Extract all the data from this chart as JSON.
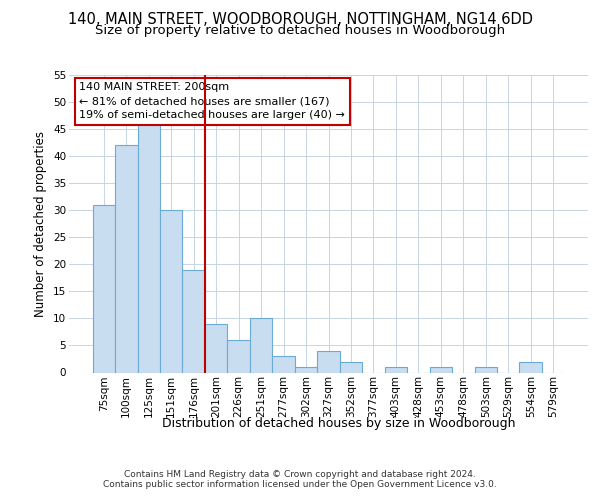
{
  "title1": "140, MAIN STREET, WOODBOROUGH, NOTTINGHAM, NG14 6DD",
  "title2": "Size of property relative to detached houses in Woodborough",
  "xlabel": "Distribution of detached houses by size in Woodborough",
  "ylabel": "Number of detached properties",
  "categories": [
    "75sqm",
    "100sqm",
    "125sqm",
    "151sqm",
    "176sqm",
    "201sqm",
    "226sqm",
    "251sqm",
    "277sqm",
    "302sqm",
    "327sqm",
    "352sqm",
    "377sqm",
    "403sqm",
    "428sqm",
    "453sqm",
    "478sqm",
    "503sqm",
    "529sqm",
    "554sqm",
    "579sqm"
  ],
  "values": [
    31,
    42,
    46,
    30,
    19,
    9,
    6,
    10,
    3,
    1,
    4,
    2,
    0,
    1,
    0,
    1,
    0,
    1,
    0,
    2,
    0
  ],
  "bar_color": "#c9ddf0",
  "bar_edge_color": "#6aabd6",
  "highlight_line_index": 5,
  "annotation_text": "140 MAIN STREET: 200sqm\n← 81% of detached houses are smaller (167)\n19% of semi-detached houses are larger (40) →",
  "annotation_box_facecolor": "#ffffff",
  "annotation_box_edgecolor": "#c00000",
  "ylim": [
    0,
    55
  ],
  "yticks": [
    0,
    5,
    10,
    15,
    20,
    25,
    30,
    35,
    40,
    45,
    50,
    55
  ],
  "footer": "Contains HM Land Registry data © Crown copyright and database right 2024.\nContains public sector information licensed under the Open Government Licence v3.0.",
  "bg_color": "#ffffff",
  "grid_color": "#c5d5e5",
  "title1_fontsize": 10.5,
  "title2_fontsize": 9.5,
  "xlabel_fontsize": 9,
  "ylabel_fontsize": 8.5,
  "tick_fontsize": 7.5,
  "annotation_fontsize": 8,
  "footer_fontsize": 6.5
}
